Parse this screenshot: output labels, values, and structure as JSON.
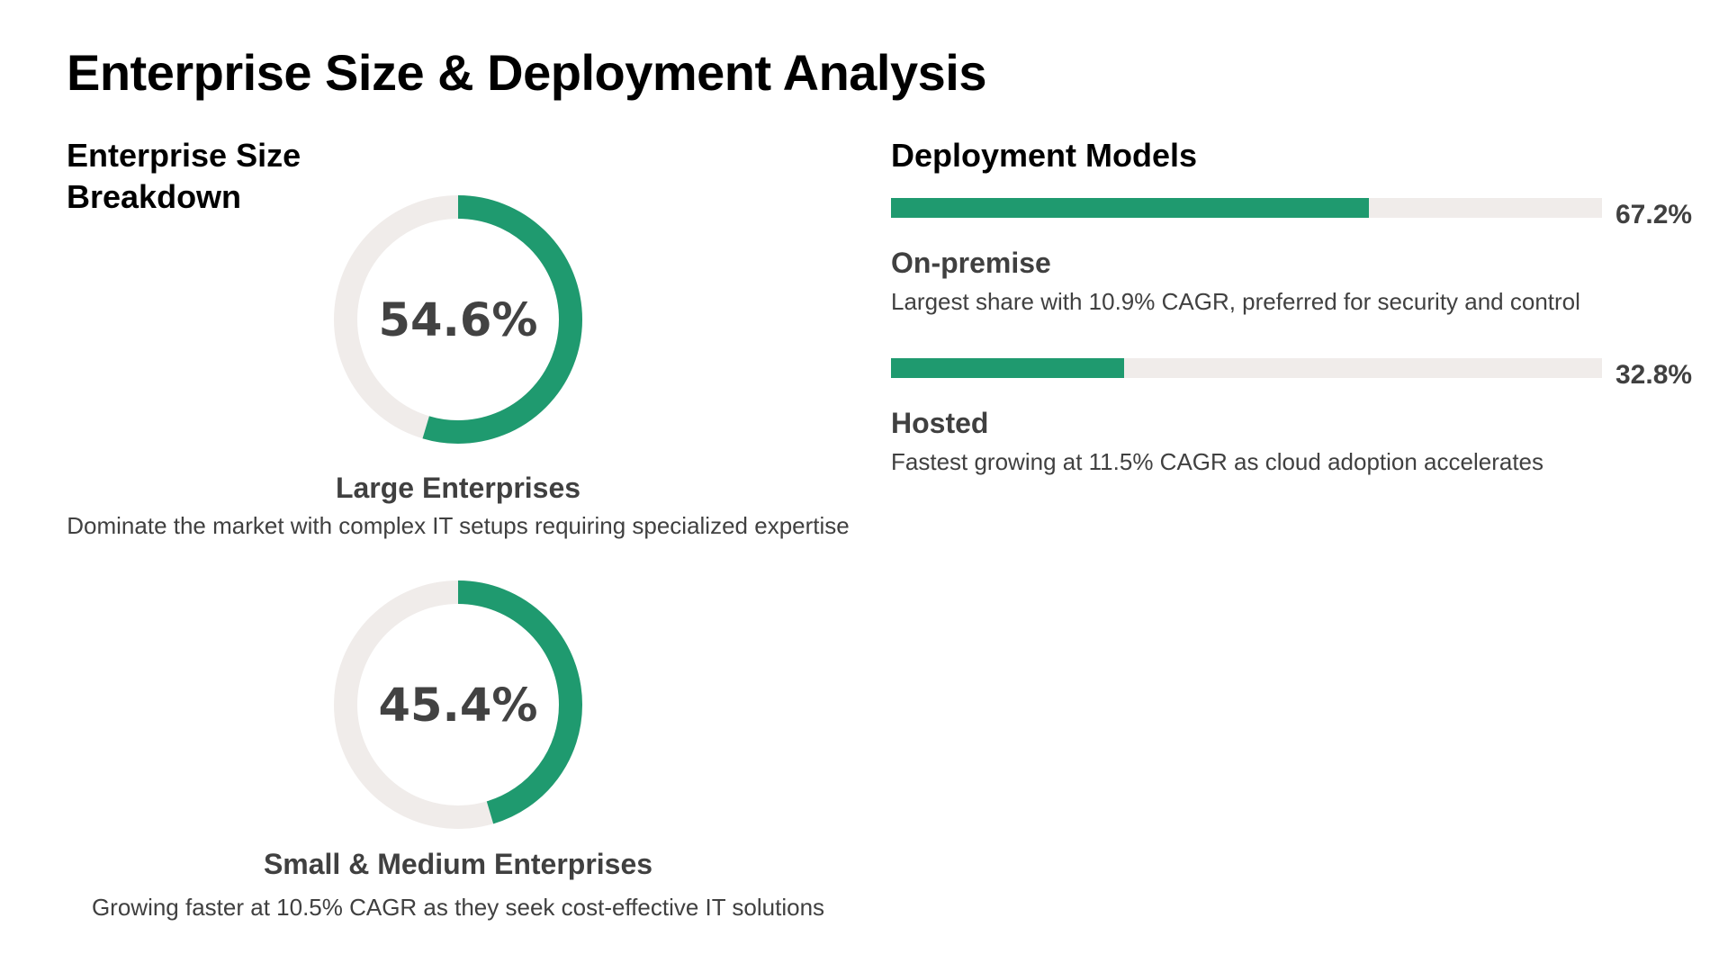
{
  "title": "Enterprise Size & Deployment Analysis",
  "colors": {
    "accent": "#1f9a6f",
    "track": "#f0ecea",
    "text": "#404040"
  },
  "enterprise_size": {
    "heading": "Enterprise Size Breakdown",
    "items": [
      {
        "value_label": "54.6%",
        "label": "Large Enterprises",
        "description": "Dominate the market with complex IT setups requiring specialized expertise"
      },
      {
        "value_label": "45.4%",
        "label": "Small & Medium Enterprises",
        "description": "Growing faster at 10.5% CAGR as they seek cost-effective IT solutions"
      }
    ]
  },
  "deployment": {
    "heading": "Deployment Models",
    "items": [
      {
        "value_label": "67.2%",
        "label": "On-premise",
        "description": "Largest share with 10.9% CAGR, preferred for security and control"
      },
      {
        "value_label": "32.8%",
        "label": "Hosted",
        "description": "Fastest growing at 11.5% CAGR as cloud adoption accelerates"
      }
    ]
  },
  "chart_data": [
    {
      "type": "pie",
      "title": "Enterprise Size Breakdown",
      "categories": [
        "Large Enterprises",
        "Small & Medium Enterprises"
      ],
      "values": [
        54.6,
        45.4
      ],
      "unit": "%"
    },
    {
      "type": "bar",
      "title": "Deployment Models",
      "categories": [
        "On-premise",
        "Hosted"
      ],
      "values": [
        67.2,
        32.8
      ],
      "unit": "%",
      "ylim": [
        0,
        100
      ]
    }
  ]
}
